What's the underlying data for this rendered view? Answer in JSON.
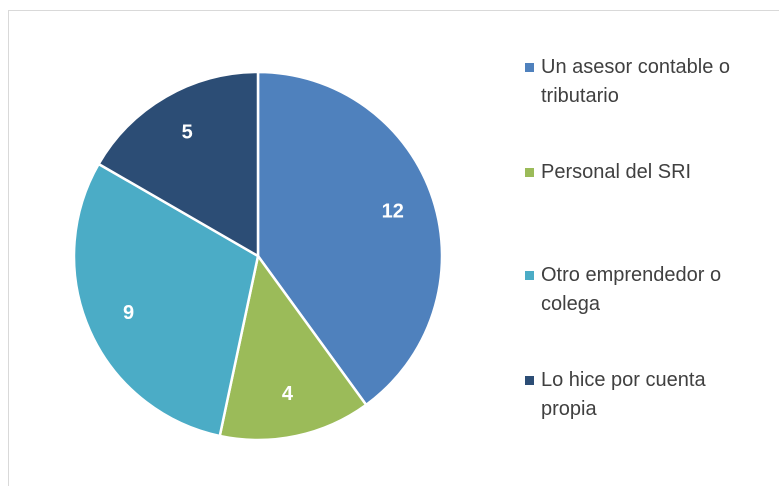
{
  "chart_data": {
    "type": "pie",
    "categories": [
      "Un asesor contable o tributario",
      "Personal del SRI",
      "Otro emprendedor o colega",
      "Lo hice por cuenta propia"
    ],
    "values": [
      12,
      4,
      9,
      5
    ],
    "colors": [
      "#4f81bd",
      "#9bbb59",
      "#4bacc6",
      "#2c4d75"
    ],
    "legend": "right"
  }
}
